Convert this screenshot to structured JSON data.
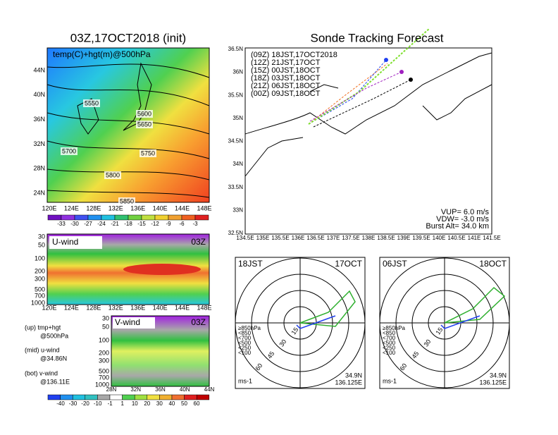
{
  "left_top": {
    "title": "03Z,17OCT2018 (init)",
    "label": "temp(C)+hgt(m)@500hPa",
    "y_labels": [
      "44N",
      "40N",
      "36N",
      "32N",
      "28N",
      "24N"
    ],
    "x_labels": [
      "120E",
      "124E",
      "128E",
      "132E",
      "136E",
      "140E",
      "144E",
      "148E"
    ],
    "contour_labels": [
      "5550",
      "5600",
      "5650",
      "5700",
      "5750",
      "5800",
      "5850"
    ],
    "colorbar_labels": [
      "-33",
      "-30",
      "-27",
      "-24",
      "-21",
      "-18",
      "-15",
      "-12",
      "-9",
      "-6",
      "-3"
    ]
  },
  "left_mid": {
    "label": "U-wind",
    "time": "03Z",
    "y_labels": [
      "30",
      "50",
      "100",
      "200",
      "300",
      "500",
      "700",
      "1000"
    ],
    "x_labels": [
      "120E",
      "124E",
      "128E",
      "132E",
      "136E",
      "140E",
      "144E",
      "148E"
    ]
  },
  "left_bot": {
    "label": "V-wind",
    "time": "03Z",
    "y_labels": [
      "30",
      "50",
      "100",
      "200",
      "300",
      "500",
      "700",
      "1000"
    ],
    "x_labels": [
      "28N",
      "32N",
      "36N",
      "40N",
      "44N"
    ],
    "colorbar_labels": [
      "-40",
      "-30",
      "-20",
      "-10",
      "-1",
      "1",
      "10",
      "20",
      "30",
      "40",
      "50",
      "60"
    ]
  },
  "notes": [
    "(up) tmp+hgt",
    "@500hPa",
    "(mid) u-wind",
    "@34.86N",
    "(bot) v-wind",
    "@136.11E"
  ],
  "track": {
    "title": "Sonde Tracking Forecast",
    "legend": [
      "(09Z) 18JST,17OCT2018",
      "(12Z) 21JST,17OCT",
      "(15Z) 00JST,18OCT",
      "(18Z) 03JST,18OCT",
      "(21Z) 06JST,18OCT",
      "(00Z) 09JST,18OCT"
    ],
    "y_labels": [
      "36.5N",
      "36N",
      "35.5N",
      "35N",
      "34.5N",
      "34N",
      "33.5N",
      "33N",
      "32.5N"
    ],
    "x_labels": [
      "134.5E",
      "135E",
      "135.5E",
      "136E",
      "136.5E",
      "137E",
      "137.5E",
      "138E",
      "138.5E",
      "139E",
      "139.5E",
      "140E",
      "140.5E",
      "141E",
      "141.5E"
    ],
    "params": [
      "VUP= 6.0 m/s",
      "VDW= -3.0 m/s",
      "Burst Alt= 34.0 km"
    ]
  },
  "hodographs": [
    {
      "left": "18JST",
      "right": "17OCT",
      "rings": [
        "15",
        "30",
        "45",
        "60"
      ],
      "levels": [
        "≥850hPa",
        "<850",
        "<700",
        "<500",
        "<250",
        "<100"
      ],
      "unit": "ms-1",
      "lat": "34.9N",
      "lon": "136.125E"
    },
    {
      "left": "06JST",
      "right": "18OCT",
      "rings": [
        "15",
        "30",
        "45",
        "60"
      ],
      "levels": [
        "≥850hPa",
        "<850",
        "<700",
        "<500",
        "<250",
        "<100"
      ],
      "unit": "ms-1",
      "lat": "34.9N",
      "lon": "136.125E"
    }
  ]
}
